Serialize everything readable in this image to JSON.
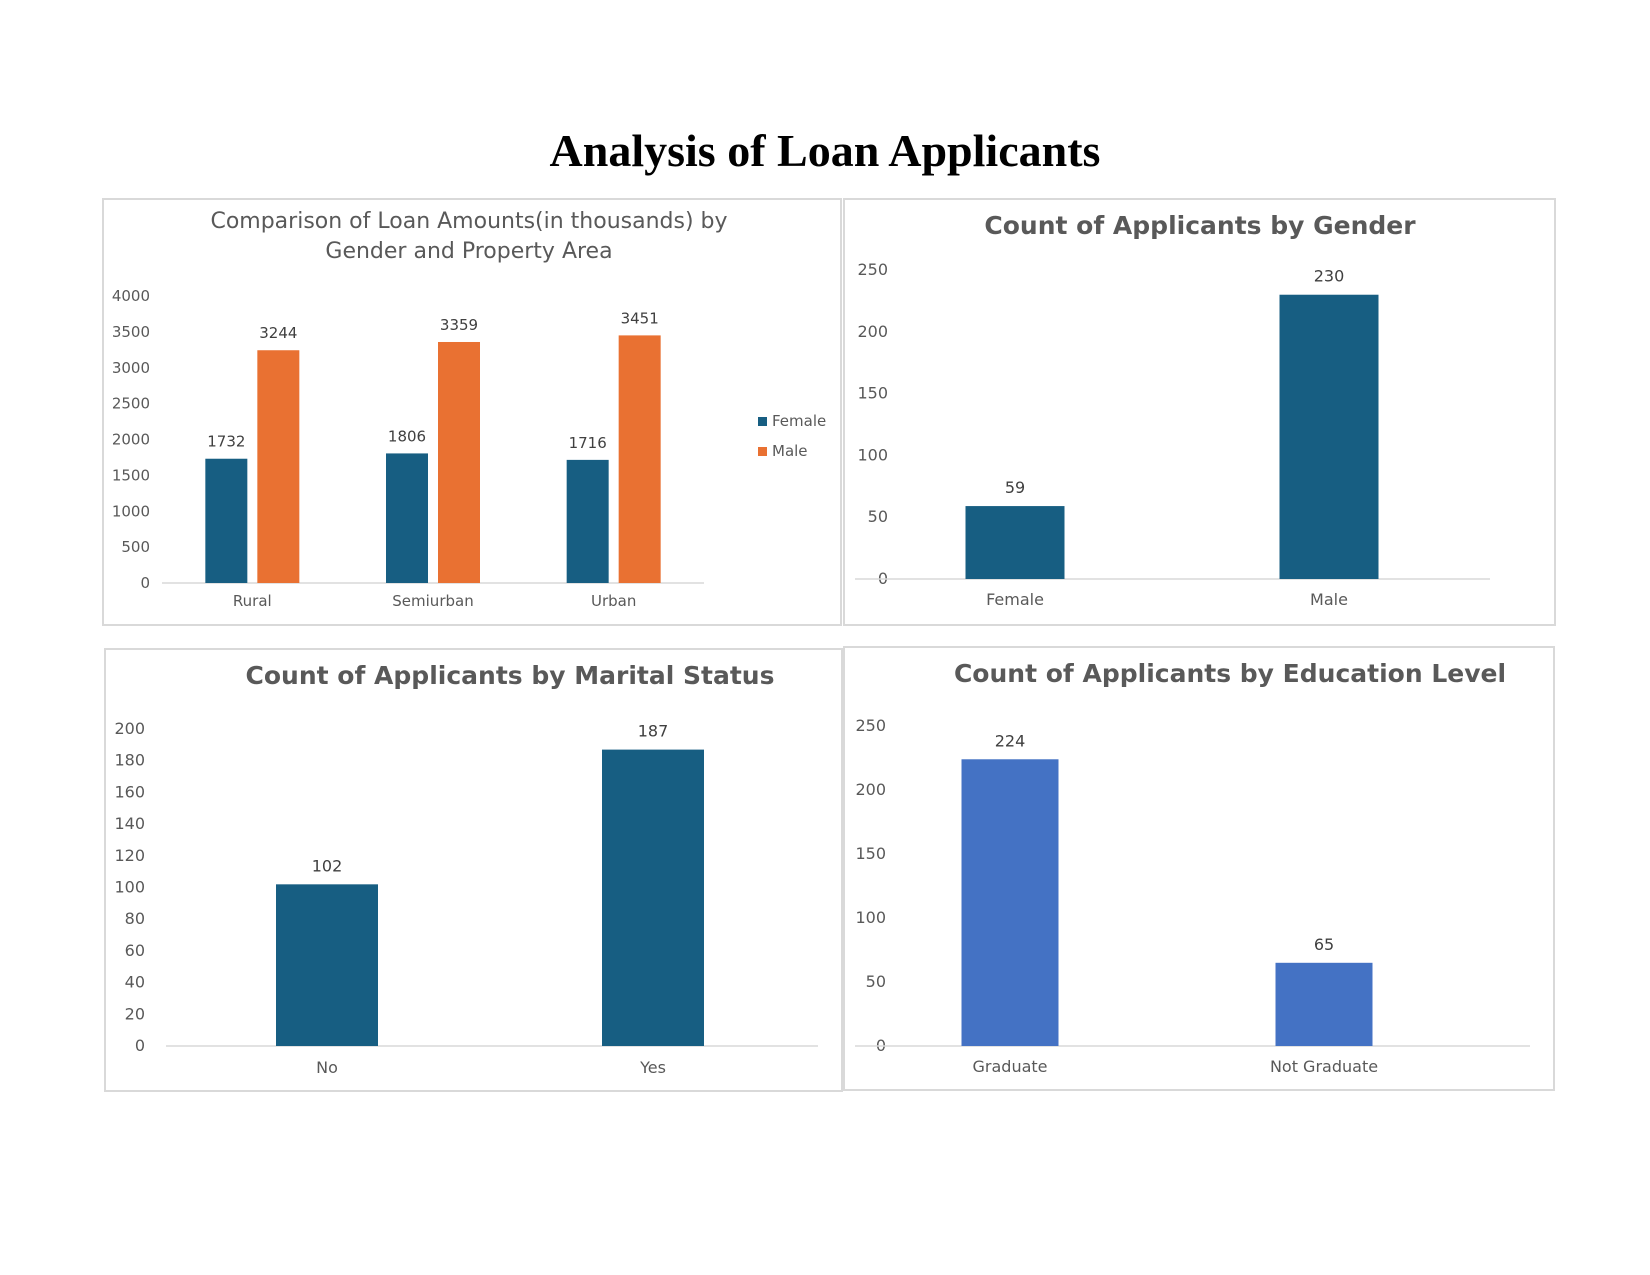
{
  "page": {
    "title": "Analysis of Loan Applicants"
  },
  "chart_data": [
    {
      "type": "bar",
      "title_lines": [
        "Comparison of Loan Amounts(in thousands) by",
        "Gender and Property Area"
      ],
      "categories": [
        "Rural",
        "Semiurban",
        "Urban"
      ],
      "series": [
        {
          "name": "Female",
          "values": [
            1732,
            1806,
            1716
          ],
          "color": "#175E82"
        },
        {
          "name": "Male",
          "values": [
            3244,
            3359,
            3451
          ],
          "color": "#E97132"
        }
      ],
      "y_ticks": [
        "0",
        "500",
        "1000",
        "1500",
        "2000",
        "2500",
        "3000",
        "3500",
        "4000"
      ],
      "ylim": [
        0,
        4000
      ],
      "legend": "right",
      "grid": false
    },
    {
      "type": "bar",
      "title": "Count of Applicants by Gender",
      "categories": [
        "Female",
        "Male"
      ],
      "values": [
        59,
        230
      ],
      "color": "#175E82",
      "y_ticks": [
        "0",
        "50",
        "100",
        "150",
        "200",
        "250"
      ],
      "ylim": [
        0,
        250
      ],
      "grid": false
    },
    {
      "type": "bar",
      "title": "Count of Applicants by Marital Status",
      "categories": [
        "No",
        "Yes"
      ],
      "values": [
        102,
        187
      ],
      "color": "#175E82",
      "y_ticks": [
        "0",
        "20",
        "40",
        "60",
        "80",
        "100",
        "120",
        "140",
        "160",
        "180",
        "200"
      ],
      "ylim": [
        0,
        200
      ],
      "grid": false
    },
    {
      "type": "bar",
      "title": "Count of Applicants by Education Level",
      "categories": [
        "Graduate",
        "Not Graduate"
      ],
      "values": [
        224,
        65
      ],
      "color": "#4472C4",
      "y_ticks": [
        "0",
        "50",
        "100",
        "150",
        "200",
        "250"
      ],
      "ylim": [
        0,
        250
      ],
      "grid": false
    }
  ]
}
